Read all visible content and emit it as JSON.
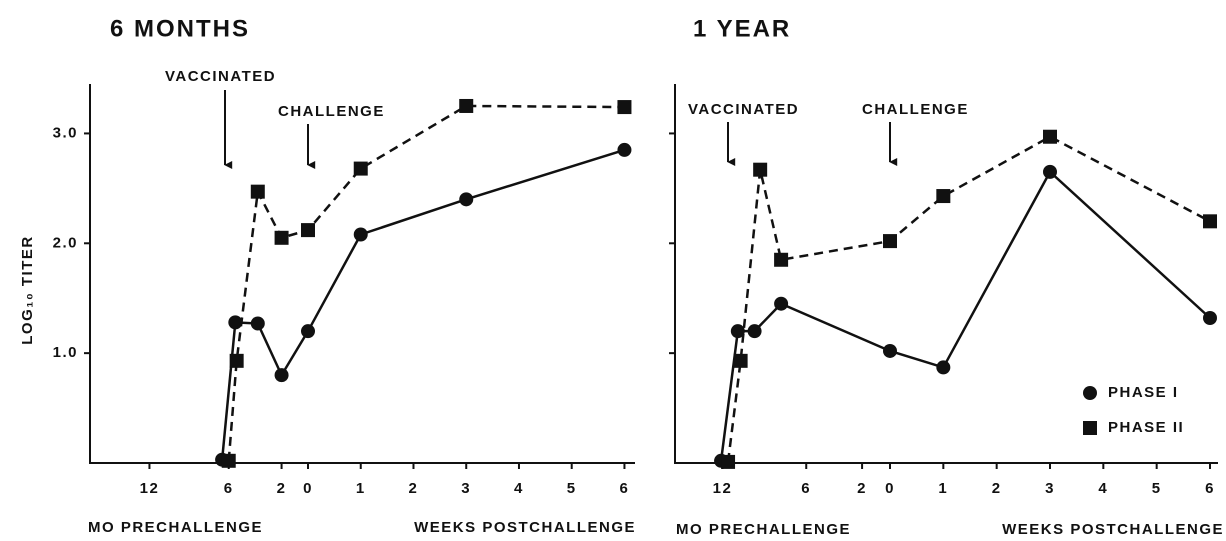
{
  "chart_data": [
    {
      "type": "line",
      "title": "6 MONTHS",
      "ylabel": "LOG₁₀ TITER",
      "xlabels": [
        "MO PRECHALLENGE",
        "WEEKS POSTCHALLENGE"
      ],
      "annotations": [
        "VACCINATED",
        "CHALLENGE"
      ],
      "xlim": [
        -16.5,
        6.2
      ],
      "xticks": [
        {
          "value": -12,
          "label": "12"
        },
        {
          "value": -6,
          "label": "6"
        },
        {
          "value": -2,
          "label": "2"
        },
        0,
        1,
        2,
        3,
        4,
        5,
        6
      ],
      "ylim": [
        0,
        3.45
      ],
      "yticks": [
        {
          "value": 1,
          "label": "1.0"
        },
        {
          "value": 2,
          "label": "2.0"
        },
        {
          "value": 3,
          "label": "3.0"
        }
      ],
      "series": [
        {
          "marker": "circle",
          "dashed": false,
          "color": "#111111",
          "x": [
            -6.5,
            -5.5,
            -3.8,
            -2,
            0,
            1,
            3,
            6
          ],
          "values": [
            0.03,
            1.28,
            1.27,
            0.8,
            1.2,
            2.08,
            2.4,
            2.85
          ]
        },
        {
          "marker": "square",
          "dashed": true,
          "color": "#111111",
          "x": [
            -6,
            -5.4,
            -3.8,
            -2,
            0,
            1,
            3,
            6
          ],
          "values": [
            0.02,
            0.93,
            2.47,
            2.05,
            2.12,
            2.68,
            3.25,
            3.24
          ]
        }
      ]
    },
    {
      "type": "line",
      "title": "1 YEAR",
      "xlabels": [
        "MO PRECHALLENGE",
        "WEEKS POSTCHALLENGE"
      ],
      "annotations": [
        "VACCINATED",
        "CHALLENGE"
      ],
      "legend": "lower right",
      "xlim": [
        -15.4,
        6.15
      ],
      "xticks": [
        {
          "value": -12,
          "label": "12"
        },
        {
          "value": -6,
          "label": "6"
        },
        {
          "value": -2,
          "label": "2"
        },
        0,
        1,
        2,
        3,
        4,
        5,
        6
      ],
      "ylim": [
        0,
        3.45
      ],
      "yticks": [
        1,
        2,
        3
      ],
      "series": [
        {
          "name": "PHASE I",
          "marker": "circle",
          "dashed": false,
          "color": "#111111",
          "x": [
            -12.1,
            -10.9,
            -9.7,
            -7.8,
            0,
            1,
            3,
            6
          ],
          "values": [
            0.02,
            1.2,
            1.2,
            1.45,
            1.02,
            0.87,
            2.65,
            1.32
          ]
        },
        {
          "name": "PHASE II",
          "marker": "square",
          "dashed": true,
          "color": "#111111",
          "x": [
            -11.6,
            -10.7,
            -9.3,
            -7.8,
            0,
            1,
            3,
            6
          ],
          "values": [
            0.01,
            0.93,
            2.67,
            1.85,
            2.02,
            2.43,
            2.97,
            2.2
          ]
        }
      ]
    }
  ]
}
